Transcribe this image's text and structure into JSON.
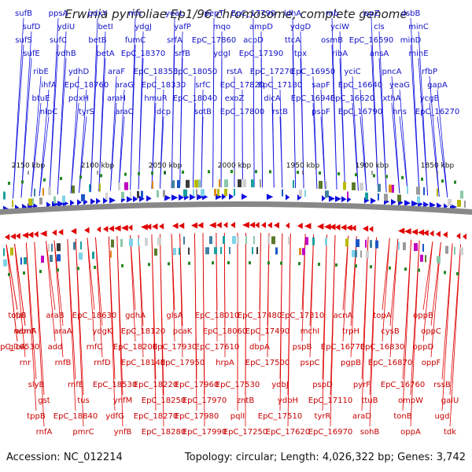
{
  "title": "Erwinia pyrifoliae Ep1/96 chromosome, complete genome",
  "footer": {
    "accession": "Accession: NC_012214",
    "summary": "Topology: circular; Length: 4,026,322 bp; Genes: 3,742"
  },
  "colors": {
    "forward": "#1010e0",
    "reverse": "#e00000",
    "backbone": "#888888",
    "marker": "#228822"
  },
  "ticks": [
    "2150 kbp",
    "2100 kbp",
    "2050 kbp",
    "2000 kbp",
    "1950 kbp",
    "1900 kbp",
    "1850 kbp"
  ],
  "top_labels": [
    "sufB",
    "sufD",
    "sufS",
    "sufE",
    "ribE",
    "ihfA",
    "btuE",
    "nlpC",
    "ppsA",
    "ydiU",
    "sufC",
    "vdhB",
    "ydhD",
    "EpC_18760",
    "pdxH",
    "tyrS",
    "pdxY",
    "betI",
    "betB",
    "betA",
    "araF",
    "araG",
    "araH",
    "araC",
    "mlc",
    "ydgJ",
    "fumC",
    "EpC_18370",
    "EpC_18350",
    "EpC_18330",
    "hmuR",
    "dcp",
    "yeaL",
    "yafP",
    "srfA",
    "srfB",
    "EpC_18050",
    "srfC",
    "EpC_18040",
    "sotB",
    "pepT",
    "mqo",
    "EpC_17860",
    "ydgI",
    "rstA",
    "EpC_17820",
    "exoZ",
    "EpC_17800",
    "EpC_17790",
    "ampD",
    "acpD",
    "EpC_17190",
    "EpC_17270",
    "EpC_17180",
    "dicA",
    "rstB",
    "ldhA",
    "ydgD",
    "ttcA",
    "tpx",
    "EpC_16950",
    "sapF",
    "EpC_16940",
    "pspF",
    "rnb",
    "yciW",
    "osmB",
    "ribA",
    "yciC",
    "EpC_16640",
    "EpC_16620",
    "EpC_16790",
    "ispZ",
    "cls",
    "EpC_16590",
    "ansA",
    "pncA",
    "yeaG",
    "xthA",
    "hns",
    "dsbB",
    "minC",
    "minD",
    "minE",
    "rfbP",
    "gapA",
    "ycgB",
    "EpC_16270"
  ],
  "bottom_labels": [
    "cfa",
    "nemA",
    "gloA",
    "rnr",
    "slyB",
    "gst",
    "tppB",
    "rnfA",
    "araB",
    "araA",
    "add",
    "rnfB",
    "rnfE",
    "tus",
    "EpC_18840",
    "pmrC",
    "EpC_18630",
    "ydgK",
    "rnfC",
    "rnfD",
    "EpC_18530",
    "ynfM",
    "ydfG",
    "ynfB",
    "gdhA",
    "EpC_18120",
    "EpC_18200",
    "EpC_18140",
    "EpC_18220",
    "EpC_18250",
    "EpC_18270",
    "EpC_18280",
    "glsA",
    "pcaK",
    "EpC_17930",
    "EpC_17950",
    "EpC_17960",
    "EpC_17970",
    "EpC_17980",
    "EpC_17990",
    "EpC_18010",
    "EpC_18060",
    "EpC_17610",
    "hrpA",
    "EpC_17530",
    "zntB",
    "pqlI",
    "EpC_17250",
    "EpC_17480",
    "EpC_17490",
    "dbpA",
    "EpC_17500",
    "ydbJ",
    "ydbH",
    "EpC_17510",
    "EpC_17620",
    "EpC_17310",
    "mchI",
    "pspB",
    "pspC",
    "pspD",
    "EpC_17110",
    "tyrR",
    "EpC_16970",
    "acnA",
    "trpH",
    "EpC_16770",
    "pgpB",
    "pyrF",
    "ttuB",
    "araD",
    "sohB",
    "topA",
    "cysB",
    "EpC_16830",
    "EpC_16870",
    "EpC_16760",
    "ompW",
    "tonB",
    "oppA",
    "oppB",
    "oppC",
    "oppD",
    "oppF",
    "rssB",
    "galU",
    "ugd",
    "tdk",
    "topB",
    "wbnF",
    "EpC_16530"
  ]
}
